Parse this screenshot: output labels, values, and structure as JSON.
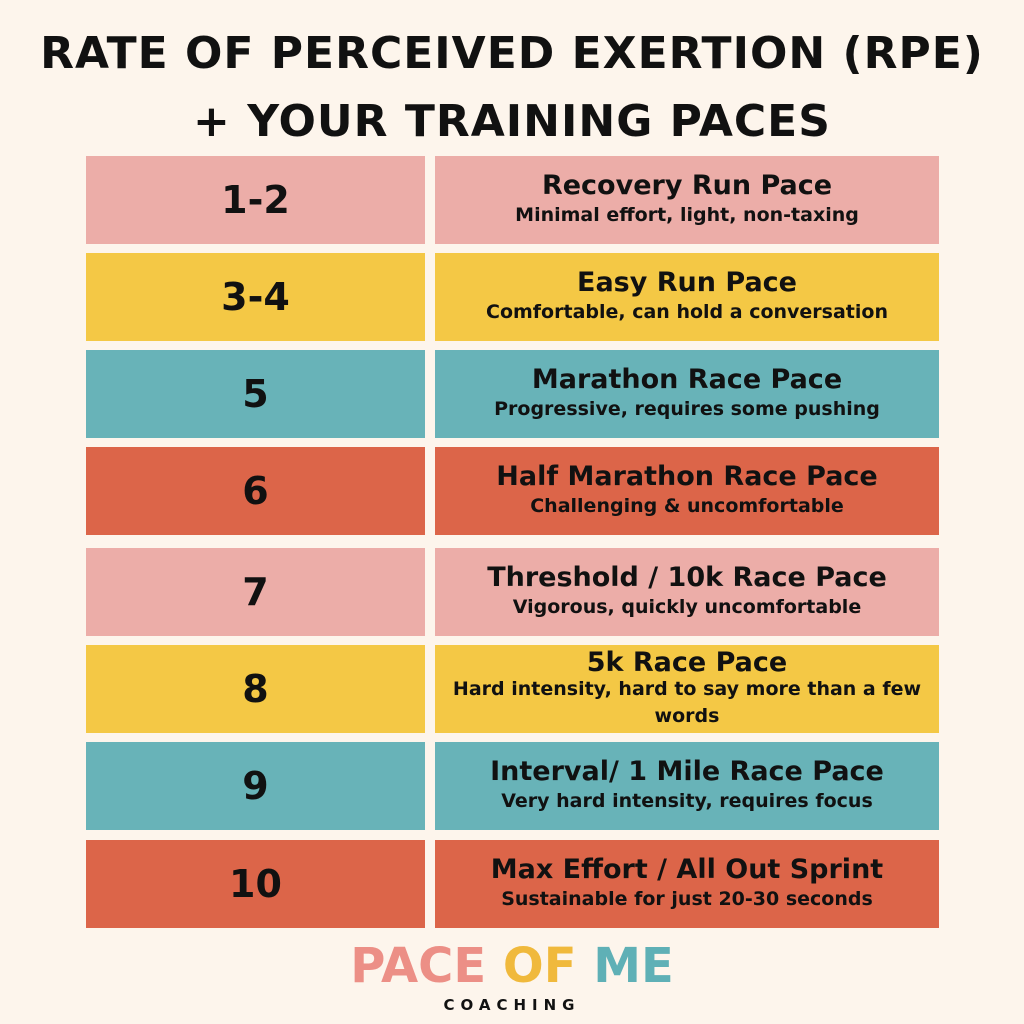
{
  "title": {
    "line1": "RATE OF PERCEIVED EXERTION (RPE)",
    "line2": "+ YOUR TRAINING PACES"
  },
  "colors": {
    "background": "#fdf5ec",
    "pink": "#ecada8",
    "yellow": "#f4c845",
    "teal": "#68b3b8",
    "red": "#dc6549"
  },
  "rows": [
    {
      "rpe": "1-2",
      "pace": "Recovery Run Pace",
      "desc": "Minimal effort, light, non-taxing",
      "color": "#ecada8"
    },
    {
      "rpe": "3-4",
      "pace": "Easy Run Pace",
      "desc": "Comfortable, can hold a conversation",
      "color": "#f4c845"
    },
    {
      "rpe": "5",
      "pace": "Marathon Race Pace",
      "desc": "Progressive, requires some pushing",
      "color": "#68b3b8"
    },
    {
      "rpe": "6",
      "pace": "Half Marathon Race Pace",
      "desc": "Challenging & uncomfortable",
      "color": "#dc6549"
    },
    {
      "rpe": "7",
      "pace": "Threshold / 10k Race Pace",
      "desc": "Vigorous, quickly uncomfortable",
      "color": "#ecada8"
    },
    {
      "rpe": "8",
      "pace": "5k Race Pace",
      "desc": "Hard intensity, hard to say more than a few words",
      "color": "#f4c845"
    },
    {
      "rpe": "9",
      "pace": "Interval/ 1 Mile Race Pace",
      "desc": "Very hard intensity, requires focus",
      "color": "#68b3b8"
    },
    {
      "rpe": "10",
      "pace": "Max Effort / All Out Sprint",
      "desc": "Sustainable for just 20-30 seconds",
      "color": "#dc6549"
    }
  ],
  "logo": {
    "word1": "PACE",
    "word2": "OF",
    "word3": "ME",
    "subtitle": "COACHING"
  }
}
